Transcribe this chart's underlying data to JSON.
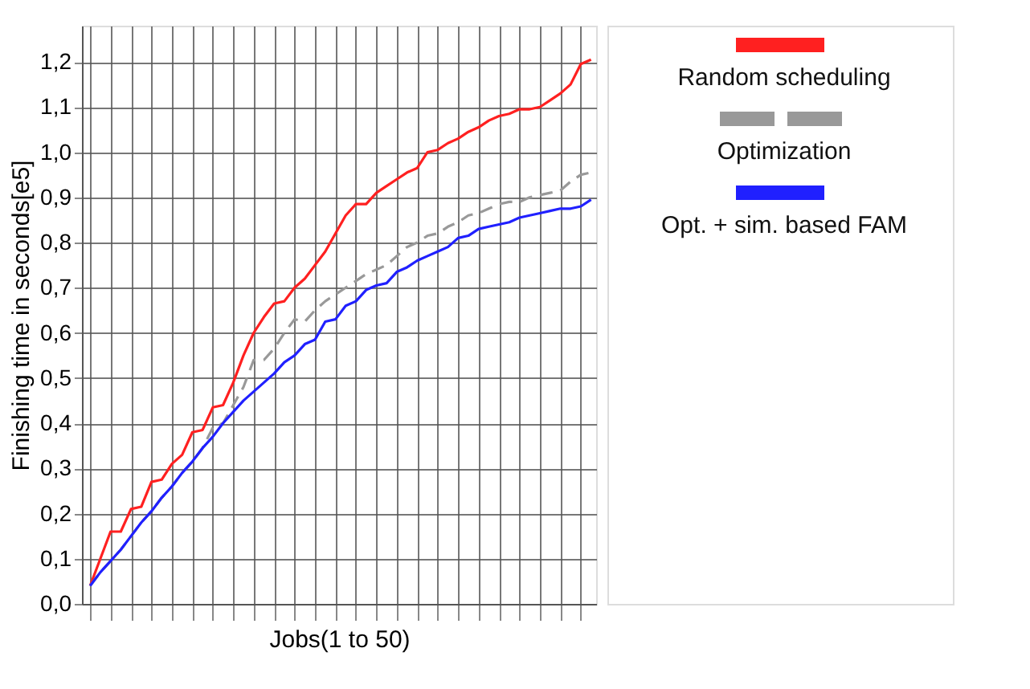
{
  "chart_data": {
    "type": "line",
    "xlabel": "Jobs(1 to 50)",
    "ylabel": "Finishing time in seconds[e5]",
    "categories": [
      null,
      null,
      null,
      null,
      null,
      null,
      null,
      null,
      null,
      null,
      null,
      null,
      null,
      null,
      null,
      null,
      null,
      null,
      null,
      null,
      null,
      null,
      null,
      null,
      null,
      null,
      null,
      null,
      null,
      null,
      null,
      null,
      null,
      null,
      null,
      null,
      null,
      null,
      null,
      null,
      null,
      null,
      null,
      null,
      null,
      null,
      null,
      null,
      null,
      null
    ],
    "series": [
      {
        "name": "Random scheduling",
        "color": "#ff2020",
        "line_style": "solid",
        "values": [
          0.04,
          0.1,
          0.16,
          0.16,
          0.21,
          0.215,
          0.27,
          0.275,
          0.31,
          0.33,
          0.38,
          0.385,
          0.435,
          0.44,
          0.49,
          0.55,
          0.6,
          0.635,
          0.665,
          0.67,
          0.7,
          0.72,
          0.75,
          0.78,
          0.82,
          0.86,
          0.885,
          0.885,
          0.91,
          0.925,
          0.94,
          0.955,
          0.965,
          1.0,
          1.005,
          1.02,
          1.03,
          1.045,
          1.055,
          1.07,
          1.08,
          1.085,
          1.095,
          1.095,
          1.1,
          1.115,
          1.13,
          1.15,
          1.195,
          1.205
        ]
      },
      {
        "name": "Optimization",
        "color": "#999999",
        "line_style": "dashed",
        "values": [
          0.04,
          0.07,
          0.095,
          0.12,
          0.15,
          0.18,
          0.205,
          0.235,
          0.26,
          0.29,
          0.315,
          0.345,
          0.39,
          0.4,
          0.44,
          0.48,
          0.54,
          0.54,
          0.565,
          0.6,
          0.63,
          0.625,
          0.65,
          0.67,
          0.685,
          0.7,
          0.715,
          0.73,
          0.74,
          0.75,
          0.77,
          0.79,
          0.8,
          0.815,
          0.82,
          0.835,
          0.845,
          0.86,
          0.865,
          0.875,
          0.885,
          0.89,
          0.89,
          0.9,
          0.905,
          0.91,
          0.915,
          0.935,
          0.95,
          0.955
        ]
      },
      {
        "name": "Opt. + sim. based FAM",
        "color": "#2020ff",
        "line_style": "solid",
        "values": [
          0.04,
          0.07,
          0.095,
          0.12,
          0.15,
          0.18,
          0.205,
          0.235,
          0.26,
          0.29,
          0.315,
          0.345,
          0.37,
          0.4,
          0.425,
          0.45,
          0.47,
          0.49,
          0.51,
          0.535,
          0.55,
          0.575,
          0.585,
          0.625,
          0.63,
          0.66,
          0.67,
          0.695,
          0.705,
          0.71,
          0.735,
          0.745,
          0.76,
          0.77,
          0.78,
          0.79,
          0.81,
          0.815,
          0.83,
          0.835,
          0.84,
          0.845,
          0.855,
          0.86,
          0.865,
          0.87,
          0.875,
          0.875,
          0.88,
          0.895
        ]
      }
    ],
    "ylim": [
      0,
      1.28
    ],
    "yticks": [
      {
        "value": 0,
        "label": "0,0"
      },
      {
        "value": 0.1,
        "label": "0,1"
      },
      {
        "value": 0.2,
        "label": "0,2"
      },
      {
        "value": 0.3,
        "label": "0,3"
      },
      {
        "value": 0.4,
        "label": "0,4"
      },
      {
        "value": 0.5,
        "label": "0,5"
      },
      {
        "value": 0.6,
        "label": "0,6"
      },
      {
        "value": 0.7,
        "label": "0,7"
      },
      {
        "value": 0.8,
        "label": "0,8"
      },
      {
        "value": 0.9,
        "label": "0,9"
      },
      {
        "value": 1.0,
        "label": "1,0"
      },
      {
        "value": 1.1,
        "label": "1,1"
      },
      {
        "value": 1.2,
        "label": "1,2"
      }
    ],
    "grid": true,
    "legend": "top right",
    "tick_labels": "y",
    "marker": "none"
  }
}
